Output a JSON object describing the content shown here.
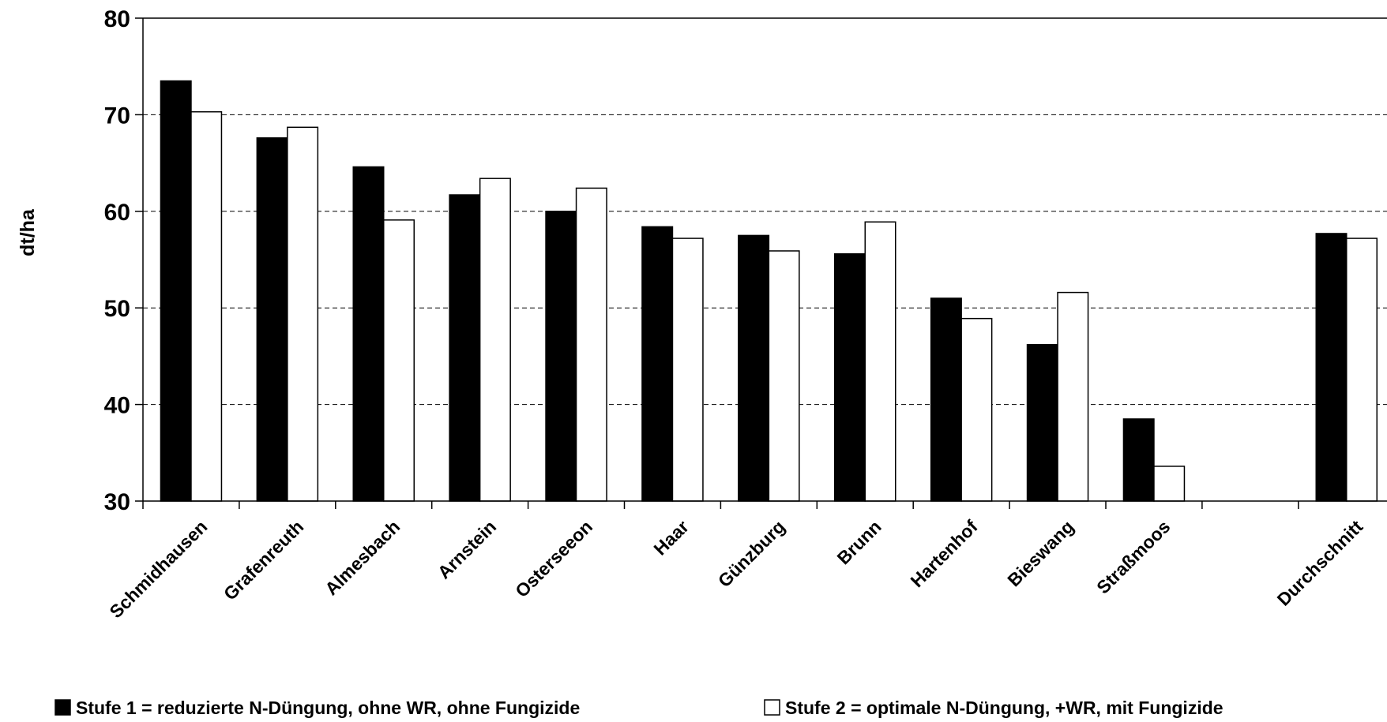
{
  "chart_data": {
    "type": "bar",
    "ylabel": "dt/ha",
    "ylim": [
      30,
      80
    ],
    "yticks": [
      30,
      40,
      50,
      60,
      70,
      80
    ],
    "grid": "horizontal dashed",
    "legend_position": "bottom",
    "categories": [
      "Schmidhausen",
      "Grafenreuth",
      "Almesbach",
      "Arnstein",
      "Osterseeon",
      "Haar",
      "Günzburg",
      "Brunn",
      "Hartenhof",
      "Bieswang",
      "Straßmoos",
      "",
      "Durchschnitt"
    ],
    "series": [
      {
        "name": "Stufe 1 = reduzierte N-Düngung, ohne WR, ohne Fungizide",
        "color": "#000000",
        "values": [
          73.5,
          67.6,
          64.6,
          61.7,
          60.0,
          58.4,
          57.5,
          55.6,
          51.0,
          46.2,
          38.5,
          null,
          57.7
        ]
      },
      {
        "name": "Stufe 2 = optimale N-Düngung, +WR, mit Fungizide",
        "color": "#ffffff",
        "values": [
          70.3,
          68.7,
          59.1,
          63.4,
          62.4,
          57.2,
          55.9,
          58.9,
          48.9,
          51.6,
          33.6,
          null,
          57.2
        ]
      }
    ]
  }
}
